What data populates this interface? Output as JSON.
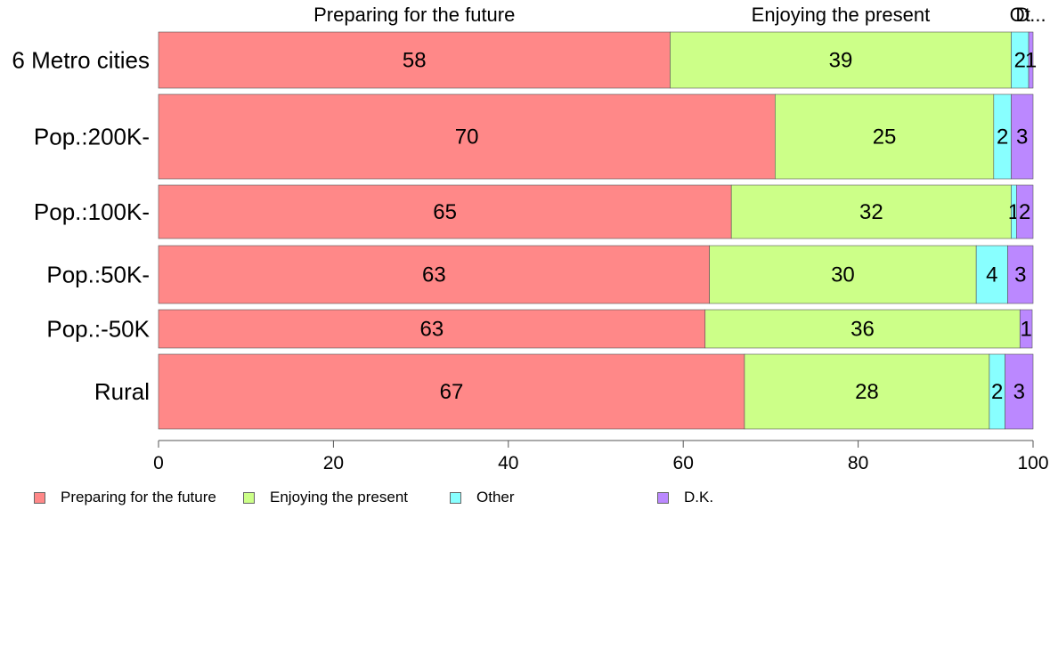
{
  "chart_data": {
    "type": "bar",
    "orientation": "horizontal",
    "stacked": true,
    "categories": [
      "6 Metro cities",
      "Pop.:200K-",
      "Pop.:100K-",
      "Pop.:50K-",
      "Pop.:-50K",
      "Rural"
    ],
    "series": [
      {
        "name": "Preparing for the future",
        "color": "#ff8888",
        "values": [
          58,
          70,
          65,
          63,
          63,
          67
        ],
        "segments": [
          58.5,
          70.5,
          65.5,
          63,
          62.5,
          67
        ]
      },
      {
        "name": "Enjoying the present",
        "color": "#ccff88",
        "values": [
          39,
          25,
          32,
          30,
          36,
          28
        ],
        "segments": [
          39,
          25,
          32,
          30.5,
          36,
          28
        ]
      },
      {
        "name": "Other",
        "color": "#88ffff",
        "values": [
          2,
          2,
          1,
          4,
          null,
          2
        ],
        "segments": [
          2,
          2,
          0.6,
          3.6,
          0,
          1.8
        ]
      },
      {
        "name": "D.K.",
        "color": "#bb88ff",
        "values": [
          1,
          3,
          2,
          3,
          1,
          3
        ],
        "segments": [
          0.6,
          2.6,
          2,
          3.2,
          1.4,
          3.2
        ]
      }
    ],
    "top_labels": [
      "Preparing for the future",
      "Enjoying the present",
      "Ot",
      "D..."
    ],
    "xlim": [
      0,
      100
    ],
    "xticks": [
      0,
      20,
      40,
      60,
      80,
      100
    ],
    "legend_position": "bottom-left"
  }
}
